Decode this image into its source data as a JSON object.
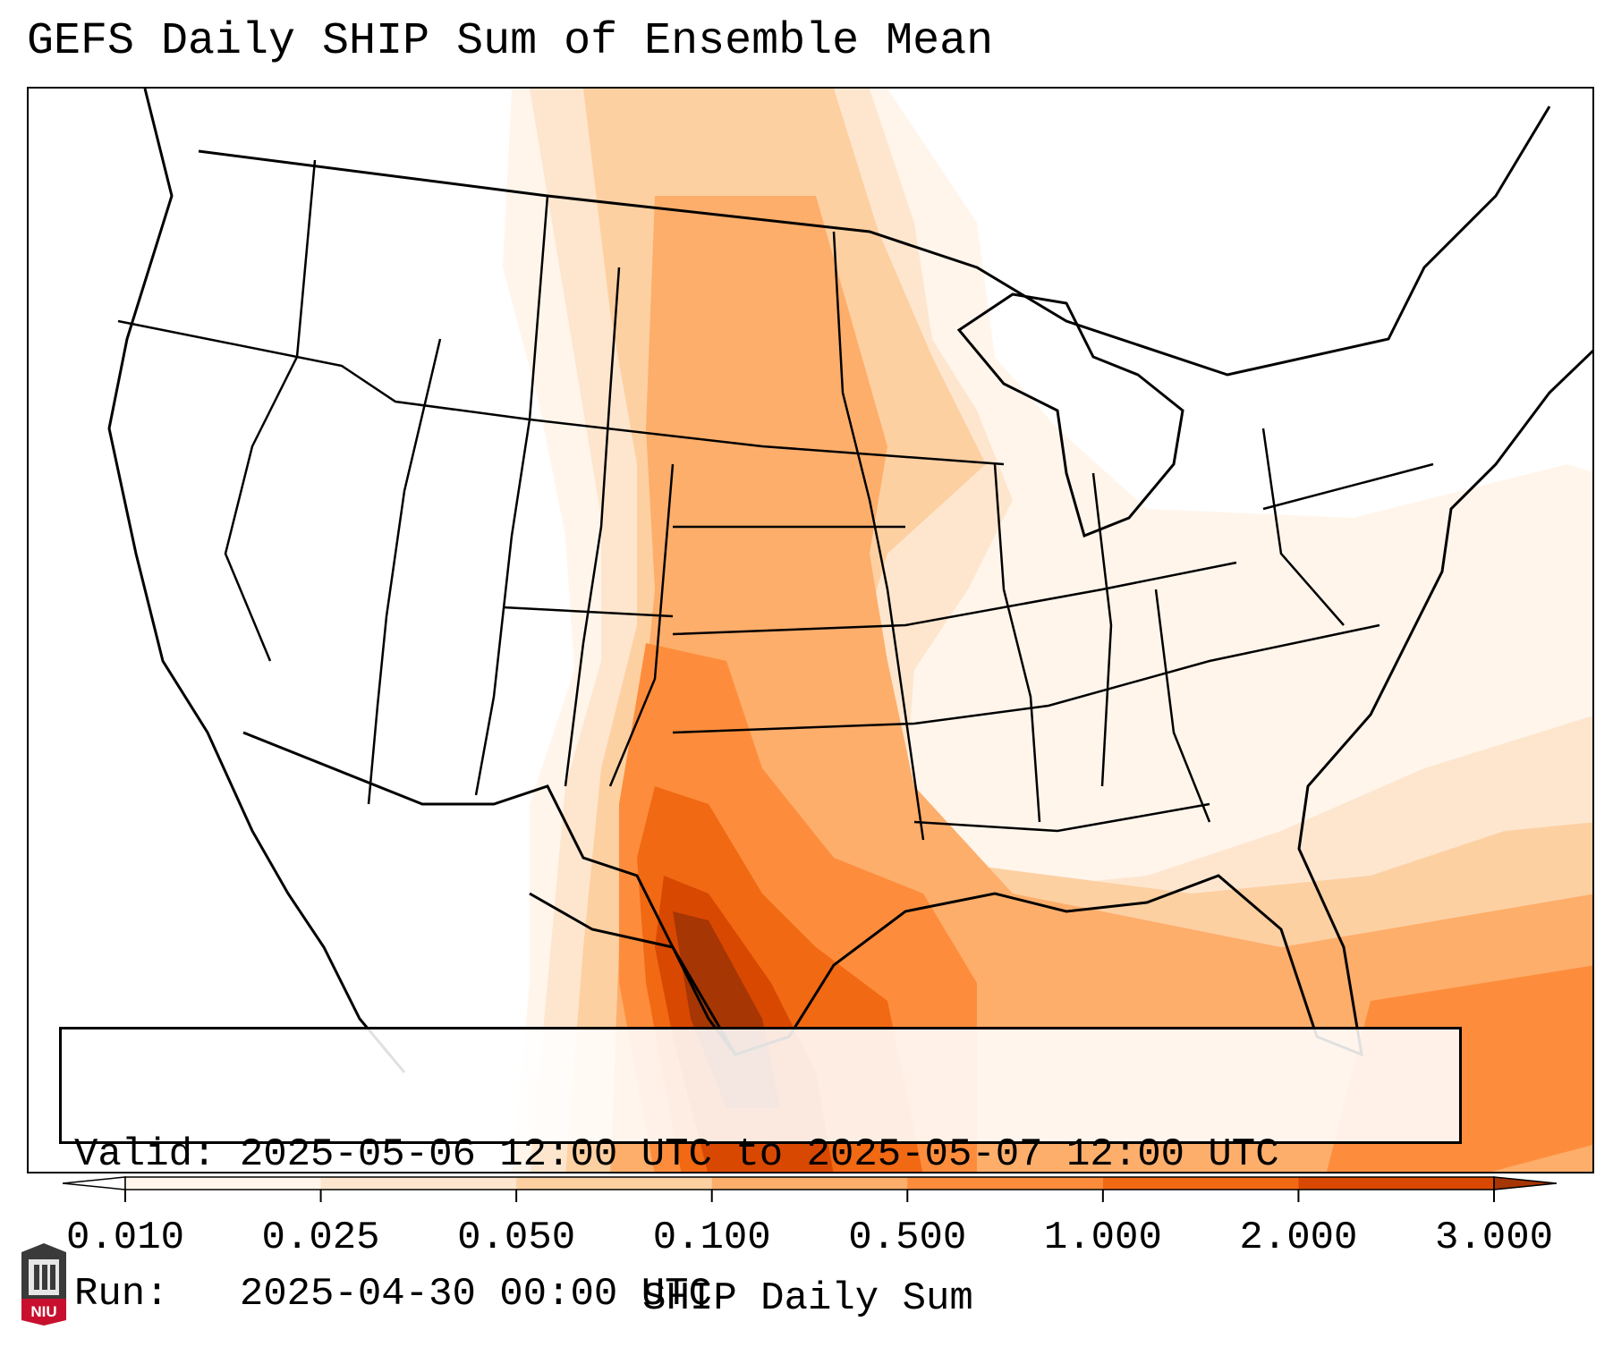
{
  "title": "GEFS Daily SHIP Sum of Ensemble Mean",
  "info": {
    "valid_line": "Valid: 2025-05-06 12:00 UTC to 2025-05-07 12:00 UTC",
    "run_line": "Run:   2025-04-30 00:00 UTC"
  },
  "colorbar": {
    "title": "SHIP Daily Sum",
    "ticks": [
      "0.010",
      "0.025",
      "0.050",
      "0.100",
      "0.500",
      "1.000",
      "2.000",
      "3.000"
    ],
    "colors": [
      "#fff5eb",
      "#fee6ce",
      "#fdd0a2",
      "#fdae6b",
      "#fd8d3c",
      "#f16913",
      "#d94801",
      "#a63603"
    ],
    "extend": "both"
  },
  "logo": {
    "text": "NIU",
    "color": "#c8102e",
    "icon": "niu-logo-icon"
  }
}
